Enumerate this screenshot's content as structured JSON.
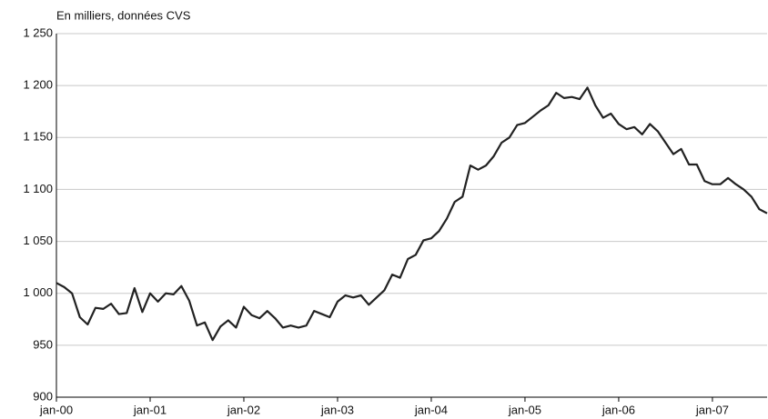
{
  "chart_data": {
    "type": "line",
    "title": "En milliers, données CVS",
    "categories": [
      "jan-00",
      null,
      null,
      null,
      null,
      null,
      null,
      null,
      null,
      null,
      null,
      null,
      "jan-01",
      null,
      null,
      null,
      null,
      null,
      null,
      null,
      null,
      null,
      null,
      null,
      "jan-02",
      null,
      null,
      null,
      null,
      null,
      null,
      null,
      null,
      null,
      null,
      null,
      "jan-03",
      null,
      null,
      null,
      null,
      null,
      null,
      null,
      null,
      null,
      null,
      null,
      "jan-04",
      null,
      null,
      null,
      null,
      null,
      null,
      null,
      null,
      null,
      null,
      null,
      "jan-05",
      null,
      null,
      null,
      null,
      null,
      null,
      null,
      null,
      null,
      null,
      null,
      "jan-06",
      null,
      null,
      null,
      null,
      null,
      null,
      null,
      null,
      null,
      null,
      null,
      "jan-07",
      null,
      null,
      null,
      null,
      null,
      null,
      null
    ],
    "values": [
      1010,
      1006,
      1000,
      977,
      970,
      986,
      985,
      990,
      980,
      981,
      1005,
      982,
      1000,
      992,
      1000,
      999,
      1007,
      993,
      969,
      972,
      955,
      968,
      974,
      967,
      987,
      979,
      976,
      983,
      976,
      967,
      969,
      967,
      969,
      983,
      980,
      977,
      992,
      998,
      996,
      998,
      989,
      996,
      1003,
      1018,
      1015,
      1033,
      1037,
      1051,
      1053,
      1060,
      1072,
      1088,
      1093,
      1123,
      1119,
      1123,
      1132,
      1145,
      1150,
      1162,
      1164,
      1170,
      1176,
      1181,
      1193,
      1188,
      1189,
      1187,
      1198,
      1181,
      1169,
      1173,
      1163,
      1158,
      1160,
      1153,
      1163,
      1156,
      1145,
      1134,
      1139,
      1124,
      1124,
      1108,
      1105,
      1105,
      1111,
      1105,
      1100,
      1093,
      1081,
      1077
    ],
    "color": "#222222",
    "ylim": [
      900,
      1250
    ],
    "yticks": [
      {
        "value": 900,
        "label": "900"
      },
      950,
      {
        "value": 1000,
        "label": "1 000"
      },
      {
        "value": 1050,
        "label": "1 050"
      },
      {
        "value": 1100,
        "label": "1 100"
      },
      {
        "value": 1150,
        "label": "1 150"
      },
      {
        "value": 1200,
        "label": "1 200"
      },
      {
        "value": 1250,
        "label": "1 250"
      }
    ],
    "grid": true
  }
}
